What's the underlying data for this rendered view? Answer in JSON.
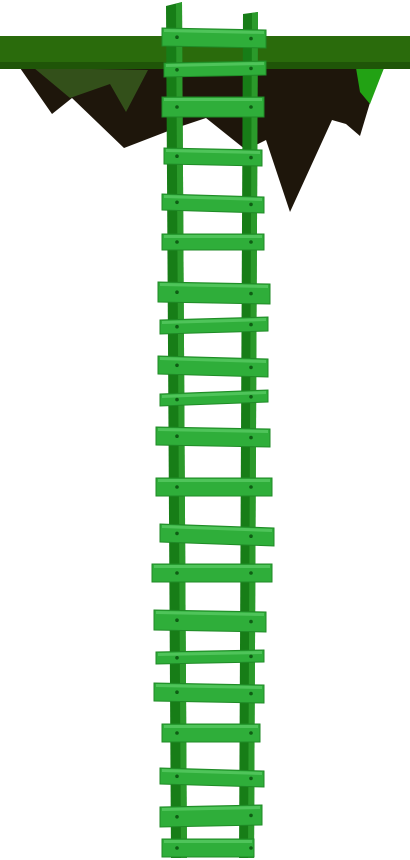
{
  "scene": {
    "type": "game-sprite",
    "subject": "ladder",
    "rung_count": 21,
    "colors": {
      "background": "#ffffff",
      "ledge_top": "#2a6b0c",
      "ledge_top_dark": "#1f5508",
      "ledge_underside": "#1e160b",
      "ledge_underside_shade": "#33501a",
      "ledge_highlight": "#22a214",
      "rail_dark": "#177d17",
      "rail_light": "#2b9a2b",
      "rung_fill": "#2fae3a",
      "rung_edge": "#1f8a26",
      "rung_highlight": "#4fc45a",
      "nail": "#0e5e14"
    }
  }
}
